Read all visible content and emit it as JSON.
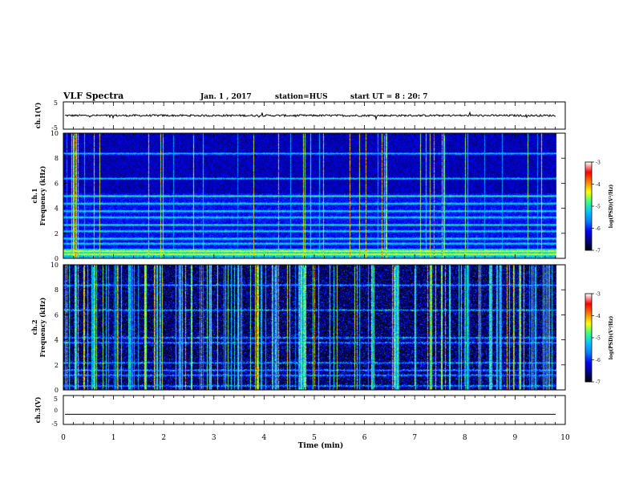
{
  "header": {
    "title": "VLF Spectra",
    "date": "Jan. 1 , 2017",
    "station": "station=HUS",
    "start": "start UT =  8 : 20: 7"
  },
  "chart_data": [
    {
      "type": "line",
      "name": "ch1-waveform",
      "ylabel": "ch.1(V)",
      "ylim": [
        -5,
        5
      ],
      "yticks": [
        "5",
        "-5"
      ],
      "level": 0,
      "noise": 0.35
    },
    {
      "type": "heatmap",
      "name": "ch1-spectrogram",
      "ylabel": "ch.1 Frequency (kHz)",
      "ylabel_line1": "ch.1",
      "ylabel_line2": "Frequency (kHz)",
      "ylim": [
        0,
        10
      ],
      "yticks": [
        "0",
        "2",
        "4",
        "6",
        "8",
        "10"
      ],
      "colorbar": {
        "label": "log(PSD)(V²/Hz)",
        "range": [
          -7,
          -3
        ],
        "ticks": [
          "-3",
          "-4",
          "-5",
          "-6",
          "-7"
        ]
      },
      "bands_khz": [
        0.35,
        0.6,
        1.2,
        1.6,
        2.2,
        2.7,
        3.3,
        3.8,
        4.4,
        5.0,
        6.4,
        8.4
      ],
      "spike_density": 0.18
    },
    {
      "type": "heatmap",
      "name": "ch2-spectrogram",
      "ylabel": "ch.2 Frequency (kHz)",
      "ylabel_line1": "ch.2",
      "ylabel_line2": "Frequency (kHz)",
      "ylim": [
        0,
        10
      ],
      "yticks": [
        "0",
        "2",
        "4",
        "6",
        "8",
        "10"
      ],
      "colorbar": {
        "label": "log(PSD)(V²/Hz)",
        "range": [
          -7,
          -3
        ],
        "ticks": [
          "-3",
          "-4",
          "-5",
          "-6",
          "-7"
        ]
      },
      "bands_khz": [
        0.35,
        1.2,
        1.6,
        2.2,
        3.8,
        4.2,
        6.4,
        8.4
      ],
      "spike_density": 0.55
    },
    {
      "type": "line",
      "name": "ch3-waveform",
      "ylabel": "ch.3(V)",
      "ylim": [
        -5,
        5
      ],
      "yticks": [
        "5",
        "0",
        "-5"
      ],
      "level": -1.5,
      "noise": 0
    }
  ],
  "xaxis": {
    "label": "Time (min)",
    "xlim": [
      0,
      10
    ],
    "ticks": [
      "0",
      "1",
      "2",
      "3",
      "4",
      "5",
      "6",
      "7",
      "8",
      "9",
      "10"
    ],
    "data_end": 9.82
  },
  "colors": {
    "background": "#000000",
    "trace": "#000000",
    "colormap": [
      "#000000",
      "#000080",
      "#0000ff",
      "#0080ff",
      "#00c8ff",
      "#40ff80",
      "#ffff00",
      "#ff8000",
      "#ff0000",
      "#ffffff"
    ]
  }
}
